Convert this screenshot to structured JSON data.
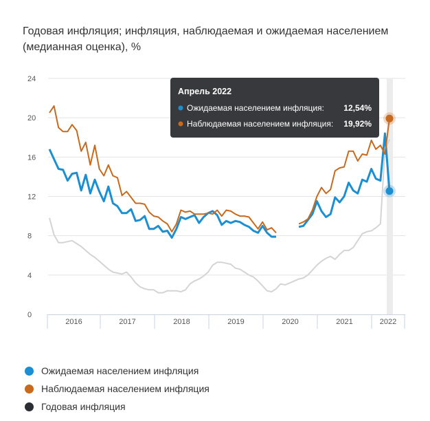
{
  "chart_data": {
    "type": "line",
    "title": "Годовая инфляция; инфляция, наблюдаемая и ожидаемая населением (медианная оценка), %",
    "xlabel": "",
    "ylabel": "",
    "ylim": [
      0,
      24
    ],
    "yticks": [
      "0",
      "4",
      "8",
      "12",
      "16",
      "20",
      "24"
    ],
    "xticks": [
      "2016",
      "2017",
      "2018",
      "2019",
      "2020",
      "2021",
      "2022"
    ],
    "x_start": "2016-01",
    "x_end": "2022-04",
    "frequency": "monthly",
    "grid": true,
    "legend_position": "bottom",
    "series": [
      {
        "name": "Ожидаемая населением инфляция",
        "color": "#1b8fd2",
        "values": [
          16.8,
          15.8,
          14.8,
          14.7,
          13.6,
          14.3,
          14.4,
          12.6,
          14.2,
          12.3,
          13.7,
          12.5,
          11.5,
          13.0,
          11.3,
          11.0,
          10.3,
          10.3,
          10.7,
          9.5,
          9.6,
          10.0,
          8.7,
          8.7,
          9.0,
          8.4,
          8.5,
          7.8,
          8.7,
          9.9,
          9.7,
          9.9,
          10.1,
          9.3,
          9.9,
          10.3,
          10.5,
          10.1,
          9.1,
          9.5,
          9.3,
          9.5,
          9.4,
          9.1,
          8.9,
          8.5,
          8.3,
          9.0,
          8.3,
          7.9,
          7.9,
          null,
          null,
          null,
          null,
          8.9,
          9.0,
          9.6,
          10.2,
          11.5,
          10.5,
          9.9,
          10.2,
          11.9,
          11.4,
          12.0,
          13.4,
          12.6,
          12.3,
          13.7,
          13.5,
          14.8,
          13.8,
          13.6,
          18.4,
          12.54
        ]
      },
      {
        "name": "Наблюдаемая населением инфляция",
        "color": "#c8691c",
        "values": [
          20.5,
          21.2,
          19.0,
          18.6,
          18.6,
          19.3,
          18.7,
          16.6,
          17.5,
          15.2,
          17.2,
          14.8,
          14.1,
          15.2,
          14.1,
          13.9,
          12.1,
          12.5,
          11.9,
          11.3,
          11.3,
          11.2,
          10.4,
          10.0,
          9.9,
          9.5,
          9.2,
          8.4,
          9.2,
          10.6,
          10.4,
          10.5,
          10.2,
          10.2,
          10.2,
          10.3,
          10.2,
          10.6,
          10.0,
          10.6,
          10.5,
          10.2,
          10.0,
          10.0,
          9.9,
          9.3,
          8.7,
          9.4,
          8.6,
          8.8,
          8.3,
          null,
          null,
          null,
          null,
          9.2,
          9.4,
          9.7,
          10.6,
          12.0,
          12.9,
          12.3,
          12.7,
          14.6,
          14.9,
          15.0,
          16.6,
          16.6,
          15.6,
          16.3,
          16.2,
          17.7,
          16.8,
          17.2,
          16.3,
          19.92
        ]
      },
      {
        "name": "Годовая инфляция",
        "color": "#d4d4d4",
        "legend_color": "#2b2e34",
        "values": [
          9.8,
          8.1,
          7.3,
          7.3,
          7.4,
          7.5,
          7.2,
          6.9,
          6.5,
          6.1,
          5.8,
          5.4,
          5.0,
          4.6,
          4.3,
          4.2,
          4.1,
          4.3,
          3.8,
          3.2,
          2.8,
          2.6,
          2.5,
          2.5,
          2.2,
          2.2,
          2.4,
          2.4,
          2.4,
          2.3,
          2.5,
          3.1,
          3.4,
          3.6,
          3.9,
          4.3,
          5.0,
          5.3,
          5.3,
          5.2,
          5.1,
          4.7,
          4.6,
          4.3,
          4.0,
          3.8,
          3.4,
          2.9,
          2.4,
          2.3,
          2.6,
          3.1,
          3.0,
          3.2,
          3.4,
          3.6,
          3.7,
          4.0,
          4.5,
          5.0,
          5.4,
          5.7,
          5.9,
          5.6,
          6.1,
          6.5,
          6.5,
          6.8,
          7.5,
          8.2,
          8.4,
          8.5,
          8.8,
          9.2,
          16.7,
          17.8
        ]
      }
    ],
    "tooltip": {
      "title": "Апрель 2022",
      "rows": [
        {
          "label": "Ожидаемая населением инфляция:",
          "value": "12,54%"
        },
        {
          "label": "Наблюдаемая населением инфляция:",
          "value": "19,92%"
        }
      ]
    }
  }
}
